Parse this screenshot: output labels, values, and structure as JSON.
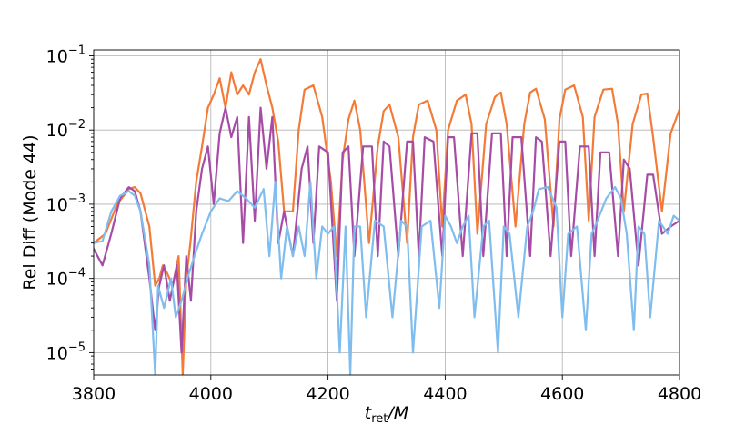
{
  "chart_data": {
    "type": "line",
    "xlabel_base": "t",
    "xlabel_sub": "ret",
    "xlabel_tail": "/M",
    "ylabel": "Rel Diff (Mode 44)",
    "xlim": [
      3800,
      4800
    ],
    "ylim": [
      5e-06,
      0.12
    ],
    "yscale": "log",
    "grid": true,
    "x_ticks": [
      3800,
      4000,
      4200,
      4400,
      4600,
      4800
    ],
    "x_tick_labels": [
      "3800",
      "4000",
      "4200",
      "4400",
      "4600",
      "4800"
    ],
    "y_ticks": [
      1e-05,
      0.0001,
      0.001,
      0.01,
      0.1
    ],
    "y_tick_labels": [
      {
        "base": "10",
        "exp": "−5"
      },
      {
        "base": "10",
        "exp": "−4"
      },
      {
        "base": "10",
        "exp": "−3"
      },
      {
        "base": "10",
        "exp": "−2"
      },
      {
        "base": "10",
        "exp": "−1"
      }
    ],
    "series": [
      {
        "color": "#f37b38",
        "x": [
          3800,
          3820,
          3840,
          3860,
          3870,
          3880,
          3895,
          3905,
          3912,
          3918,
          3925,
          3935,
          3945,
          3952,
          3958,
          3965,
          3975,
          3985,
          3995,
          4005,
          4015,
          4025,
          4035,
          4045,
          4055,
          4065,
          4075,
          4085,
          4095,
          4105,
          4115,
          4125,
          4140,
          4150,
          4160,
          4175,
          4190,
          4205,
          4215,
          4225,
          4235,
          4245,
          4255,
          4270,
          4285,
          4295,
          4305,
          4320,
          4335,
          4345,
          4355,
          4370,
          4385,
          4395,
          4405,
          4420,
          4435,
          4445,
          4455,
          4470,
          4485,
          4495,
          4505,
          4520,
          4535,
          4545,
          4555,
          4570,
          4585,
          4595,
          4605,
          4620,
          4635,
          4645,
          4655,
          4670,
          4685,
          4695,
          4705,
          4720,
          4735,
          4745,
          4755,
          4770,
          4785,
          4800
        ],
        "y": [
          0.0003,
          0.0004,
          0.001,
          0.0016,
          0.0017,
          0.0014,
          0.0005,
          8e-05,
          0.0001,
          0.00015,
          0.00012,
          8e-05,
          0.0002,
          5e-06,
          0.0001,
          0.0003,
          0.002,
          0.006,
          0.02,
          0.03,
          0.05,
          0.02,
          0.06,
          0.03,
          0.04,
          0.03,
          0.06,
          0.09,
          0.04,
          0.02,
          0.007,
          0.0008,
          0.0008,
          0.01,
          0.035,
          0.04,
          0.015,
          0.002,
          0.0002,
          0.004,
          0.014,
          0.025,
          0.01,
          0.0003,
          0.006,
          0.018,
          0.022,
          0.008,
          0.0003,
          0.008,
          0.022,
          0.025,
          0.01,
          0.0005,
          0.01,
          0.025,
          0.03,
          0.012,
          0.0004,
          0.012,
          0.028,
          0.032,
          0.012,
          0.0005,
          0.012,
          0.032,
          0.036,
          0.014,
          0.0005,
          0.014,
          0.035,
          0.04,
          0.015,
          0.0006,
          0.015,
          0.035,
          0.036,
          0.012,
          0.0008,
          0.012,
          0.03,
          0.031,
          0.008,
          0.0008,
          0.009,
          0.019
        ]
      },
      {
        "color": "#a64ca6",
        "x": [
          3800,
          3815,
          3830,
          3845,
          3860,
          3870,
          3880,
          3895,
          3905,
          3912,
          3920,
          3930,
          3942,
          3950,
          3958,
          3966,
          3975,
          3985,
          3995,
          4005,
          4015,
          4025,
          4035,
          4045,
          4055,
          4065,
          4075,
          4085,
          4095,
          4105,
          4115,
          4125,
          4140,
          4155,
          4165,
          4175,
          4185,
          4200,
          4215,
          4225,
          4235,
          4245,
          4260,
          4275,
          4285,
          4295,
          4305,
          4320,
          4335,
          4345,
          4355,
          4365,
          4380,
          4395,
          4405,
          4415,
          4430,
          4445,
          4455,
          4465,
          4480,
          4495,
          4505,
          4515,
          4530,
          4545,
          4555,
          4565,
          4580,
          4595,
          4605,
          4615,
          4630,
          4645,
          4655,
          4665,
          4680,
          4695,
          4705,
          4715,
          4730,
          4745,
          4755,
          4770,
          4785,
          4800
        ],
        "y": [
          0.00025,
          0.00015,
          0.0004,
          0.0012,
          0.0017,
          0.0015,
          0.0008,
          0.0001,
          2e-05,
          8e-05,
          0.00015,
          5e-05,
          0.00015,
          1e-05,
          0.0002,
          5e-05,
          0.0008,
          0.003,
          0.006,
          0.001,
          0.009,
          0.02,
          0.008,
          0.015,
          0.0003,
          0.015,
          0.0006,
          0.02,
          0.003,
          0.015,
          0.0003,
          0.0008,
          0.0002,
          0.003,
          0.006,
          0.0003,
          0.006,
          0.005,
          5e-05,
          0.005,
          0.006,
          0.0002,
          0.006,
          0.006,
          0.0002,
          0.007,
          0.006,
          0.0002,
          0.007,
          0.007,
          0.0002,
          0.008,
          0.007,
          0.0002,
          0.008,
          0.008,
          0.0002,
          0.009,
          0.009,
          0.0002,
          0.009,
          0.009,
          0.0002,
          0.008,
          0.008,
          0.0002,
          0.008,
          0.007,
          0.0002,
          0.007,
          0.007,
          0.0002,
          0.006,
          0.006,
          0.0002,
          0.005,
          0.005,
          0.0002,
          0.004,
          0.003,
          0.00015,
          0.0025,
          0.0025,
          0.0004,
          0.0005,
          0.0006
        ]
      },
      {
        "color": "#7fbdee",
        "x": [
          3800,
          3815,
          3830,
          3845,
          3860,
          3870,
          3880,
          3895,
          3905,
          3910,
          3920,
          3932,
          3940,
          3950,
          3960,
          3972,
          3985,
          4000,
          4015,
          4030,
          4045,
          4060,
          4075,
          4090,
          4100,
          4110,
          4120,
          4130,
          4140,
          4150,
          4160,
          4170,
          4180,
          4190,
          4200,
          4210,
          4220,
          4230,
          4238,
          4245,
          4255,
          4265,
          4280,
          4295,
          4310,
          4325,
          4335,
          4345,
          4360,
          4375,
          4390,
          4400,
          4410,
          4420,
          4430,
          4440,
          4450,
          4465,
          4475,
          4490,
          4500,
          4510,
          4525,
          4540,
          4550,
          4560,
          4575,
          4590,
          4600,
          4610,
          4625,
          4640,
          4650,
          4660,
          4675,
          4690,
          4700,
          4710,
          4722,
          4730,
          4740,
          4750,
          4765,
          4780,
          4790,
          4800
        ],
        "y": [
          0.0003,
          0.00032,
          0.0008,
          0.0013,
          0.0015,
          0.0013,
          0.0008,
          0.00015,
          5e-06,
          8e-05,
          4e-05,
          0.0001,
          3e-05,
          5e-05,
          0.0001,
          0.0002,
          0.0004,
          0.0008,
          0.0012,
          0.0011,
          0.0015,
          0.0012,
          0.0009,
          0.0016,
          0.0002,
          0.002,
          0.0001,
          0.0005,
          0.0002,
          0.0005,
          0.0002,
          0.002,
          0.0001,
          0.0005,
          0.0004,
          0.0005,
          1e-05,
          0.0005,
          5e-06,
          0.0005,
          0.0005,
          3e-05,
          0.0006,
          0.0005,
          3e-05,
          0.0006,
          0.0005,
          1e-05,
          0.0005,
          0.0006,
          4e-05,
          0.0007,
          0.0005,
          0.0003,
          0.0005,
          0.0007,
          3e-05,
          0.0005,
          0.0006,
          1e-05,
          0.0005,
          0.0004,
          3e-05,
          0.0005,
          0.0008,
          0.0016,
          0.0017,
          0.0009,
          3e-05,
          0.0004,
          0.0005,
          2e-05,
          0.0004,
          0.0006,
          0.0012,
          0.0017,
          0.0012,
          0.0004,
          2e-05,
          0.0005,
          0.0004,
          3e-05,
          0.0006,
          0.0004,
          0.0007,
          0.0006
        ]
      }
    ]
  }
}
